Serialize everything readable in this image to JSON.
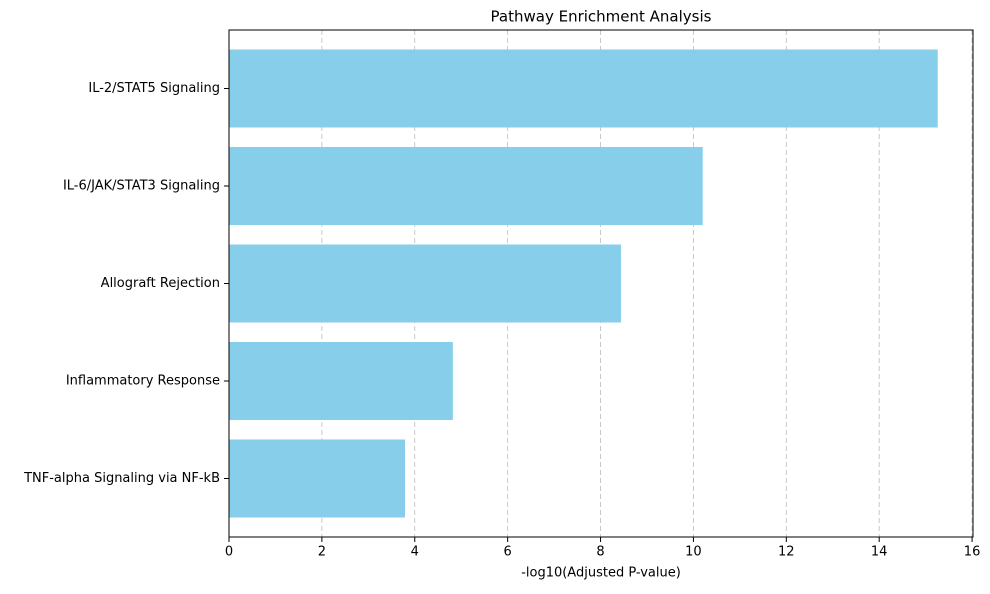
{
  "chart_data": {
    "type": "barh",
    "title": "Pathway Enrichment Analysis",
    "xlabel": "-log10(Adjusted P-value)",
    "categories": [
      "IL-2/STAT5 Signaling",
      "IL-6/JAK/STAT3 Signaling",
      "Allograft Rejection",
      "Inflammatory Response",
      "TNF-alpha Signaling via NF-kB"
    ],
    "values": [
      15.26,
      10.2,
      8.44,
      4.82,
      3.79
    ],
    "color": "#87ceeb",
    "xlim": [
      0,
      16.02
    ],
    "xticks": [
      0,
      2,
      4,
      6,
      8,
      10,
      12,
      14,
      16
    ],
    "grid": true
  }
}
